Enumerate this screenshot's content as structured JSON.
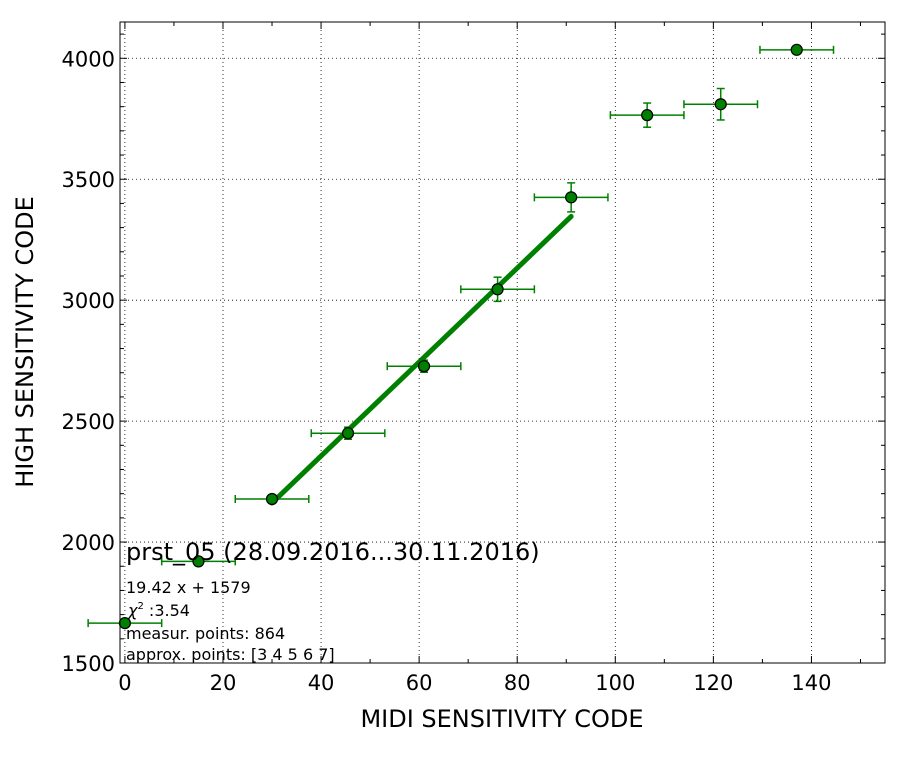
{
  "chart_data": {
    "type": "scatter",
    "xlabel": "MIDI SENSITIVITY CODE",
    "ylabel": "HIGH SENSITIVITY CODE",
    "xlim": [
      -1,
      155
    ],
    "ylim": [
      1500,
      4150
    ],
    "xticks": [
      0,
      20,
      40,
      60,
      80,
      100,
      120,
      140
    ],
    "yticks": [
      1500,
      2000,
      2500,
      3000,
      3500,
      4000
    ],
    "grid": true,
    "colors": {
      "series": "#008000",
      "marker_edge": "#000000"
    },
    "points": [
      {
        "x": 0,
        "y": 1665,
        "xerr": 7.5,
        "yerr": 0
      },
      {
        "x": 15,
        "y": 1920,
        "xerr": 7.5,
        "yerr": 0
      },
      {
        "x": 30,
        "y": 2178,
        "xerr": 7.5,
        "yerr": 12
      },
      {
        "x": 45.5,
        "y": 2450,
        "xerr": 7.5,
        "yerr": 25
      },
      {
        "x": 61,
        "y": 2727,
        "xerr": 7.5,
        "yerr": 25
      },
      {
        "x": 76,
        "y": 3045,
        "xerr": 7.5,
        "yerr": 50
      },
      {
        "x": 91,
        "y": 3425,
        "xerr": 7.5,
        "yerr": 60
      },
      {
        "x": 106.5,
        "y": 3765,
        "xerr": 7.5,
        "yerr": 50
      },
      {
        "x": 121.5,
        "y": 3810,
        "xerr": 7.5,
        "yerr": 65
      },
      {
        "x": 137,
        "y": 4035,
        "xerr": 7.5,
        "yerr": 15
      }
    ],
    "fit_line": {
      "slope": 19.42,
      "intercept": 1579,
      "x_from": 30,
      "x_to": 91
    },
    "annotations": {
      "title": "prst_05 (28.09.2016...30.11.2016)",
      "formula": "19.42 x + 1579",
      "chi_symbol": "χ",
      "chi_sup": "2",
      "chi_value": " :3.54",
      "measur_points": "measur. points: 864",
      "approx_points": "approx. points: [3 4 5 6 7]"
    }
  }
}
